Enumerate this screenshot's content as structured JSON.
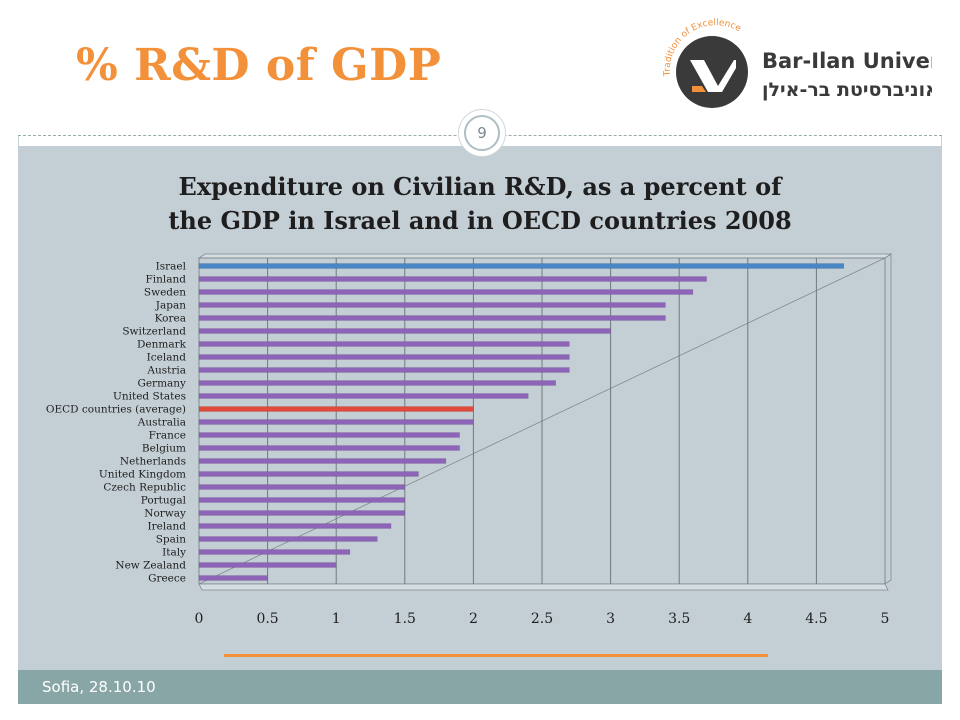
{
  "slide": {
    "title": "% R&D of GDP",
    "page_number": "9",
    "footer": "Sofia, 28.10.10"
  },
  "logo": {
    "name": "Bar-Ilan University",
    "name_hebrew": "אוניברסיטת בר-אילן",
    "tagline": "Tradition of Excellence",
    "colors": {
      "accent": "#f3913a",
      "text": "#3a3a3a"
    }
  },
  "chart_data": {
    "type": "bar",
    "orientation": "horizontal",
    "title_line1": "Expenditure on Civilian R&D, as a percent of",
    "title_line2": "the GDP in Israel and in OECD countries 2008",
    "categories": [
      "Israel",
      "Finland",
      "Sweden",
      "Japan",
      "Korea",
      "Switzerland",
      "Denmark",
      "Iceland",
      "Austria",
      "Germany",
      "United States",
      "OECD countries (average)",
      "Australia",
      "France",
      "Belgium",
      "Netherlands",
      "United Kingdom",
      "Czech Republic",
      "Portugal",
      "Norway",
      "Ireland",
      "Spain",
      "Italy",
      "New Zealand",
      "Greece"
    ],
    "values": [
      4.7,
      3.7,
      3.6,
      3.4,
      3.4,
      3.0,
      2.7,
      2.7,
      2.7,
      2.6,
      2.4,
      2.0,
      2.0,
      1.9,
      1.9,
      1.8,
      1.6,
      1.5,
      1.5,
      1.5,
      1.4,
      1.3,
      1.1,
      1.0,
      0.5
    ],
    "xlim": [
      0,
      5
    ],
    "x_ticks": [
      "0",
      "0.5",
      "1",
      "1.5",
      "2",
      "2.5",
      "3",
      "3.5",
      "4",
      "4.5",
      "5"
    ],
    "grid": true,
    "colors": {
      "default": "#8e64b8",
      "Israel": "#4a86c5",
      "OECD countries (average)": "#e04a3a"
    }
  }
}
